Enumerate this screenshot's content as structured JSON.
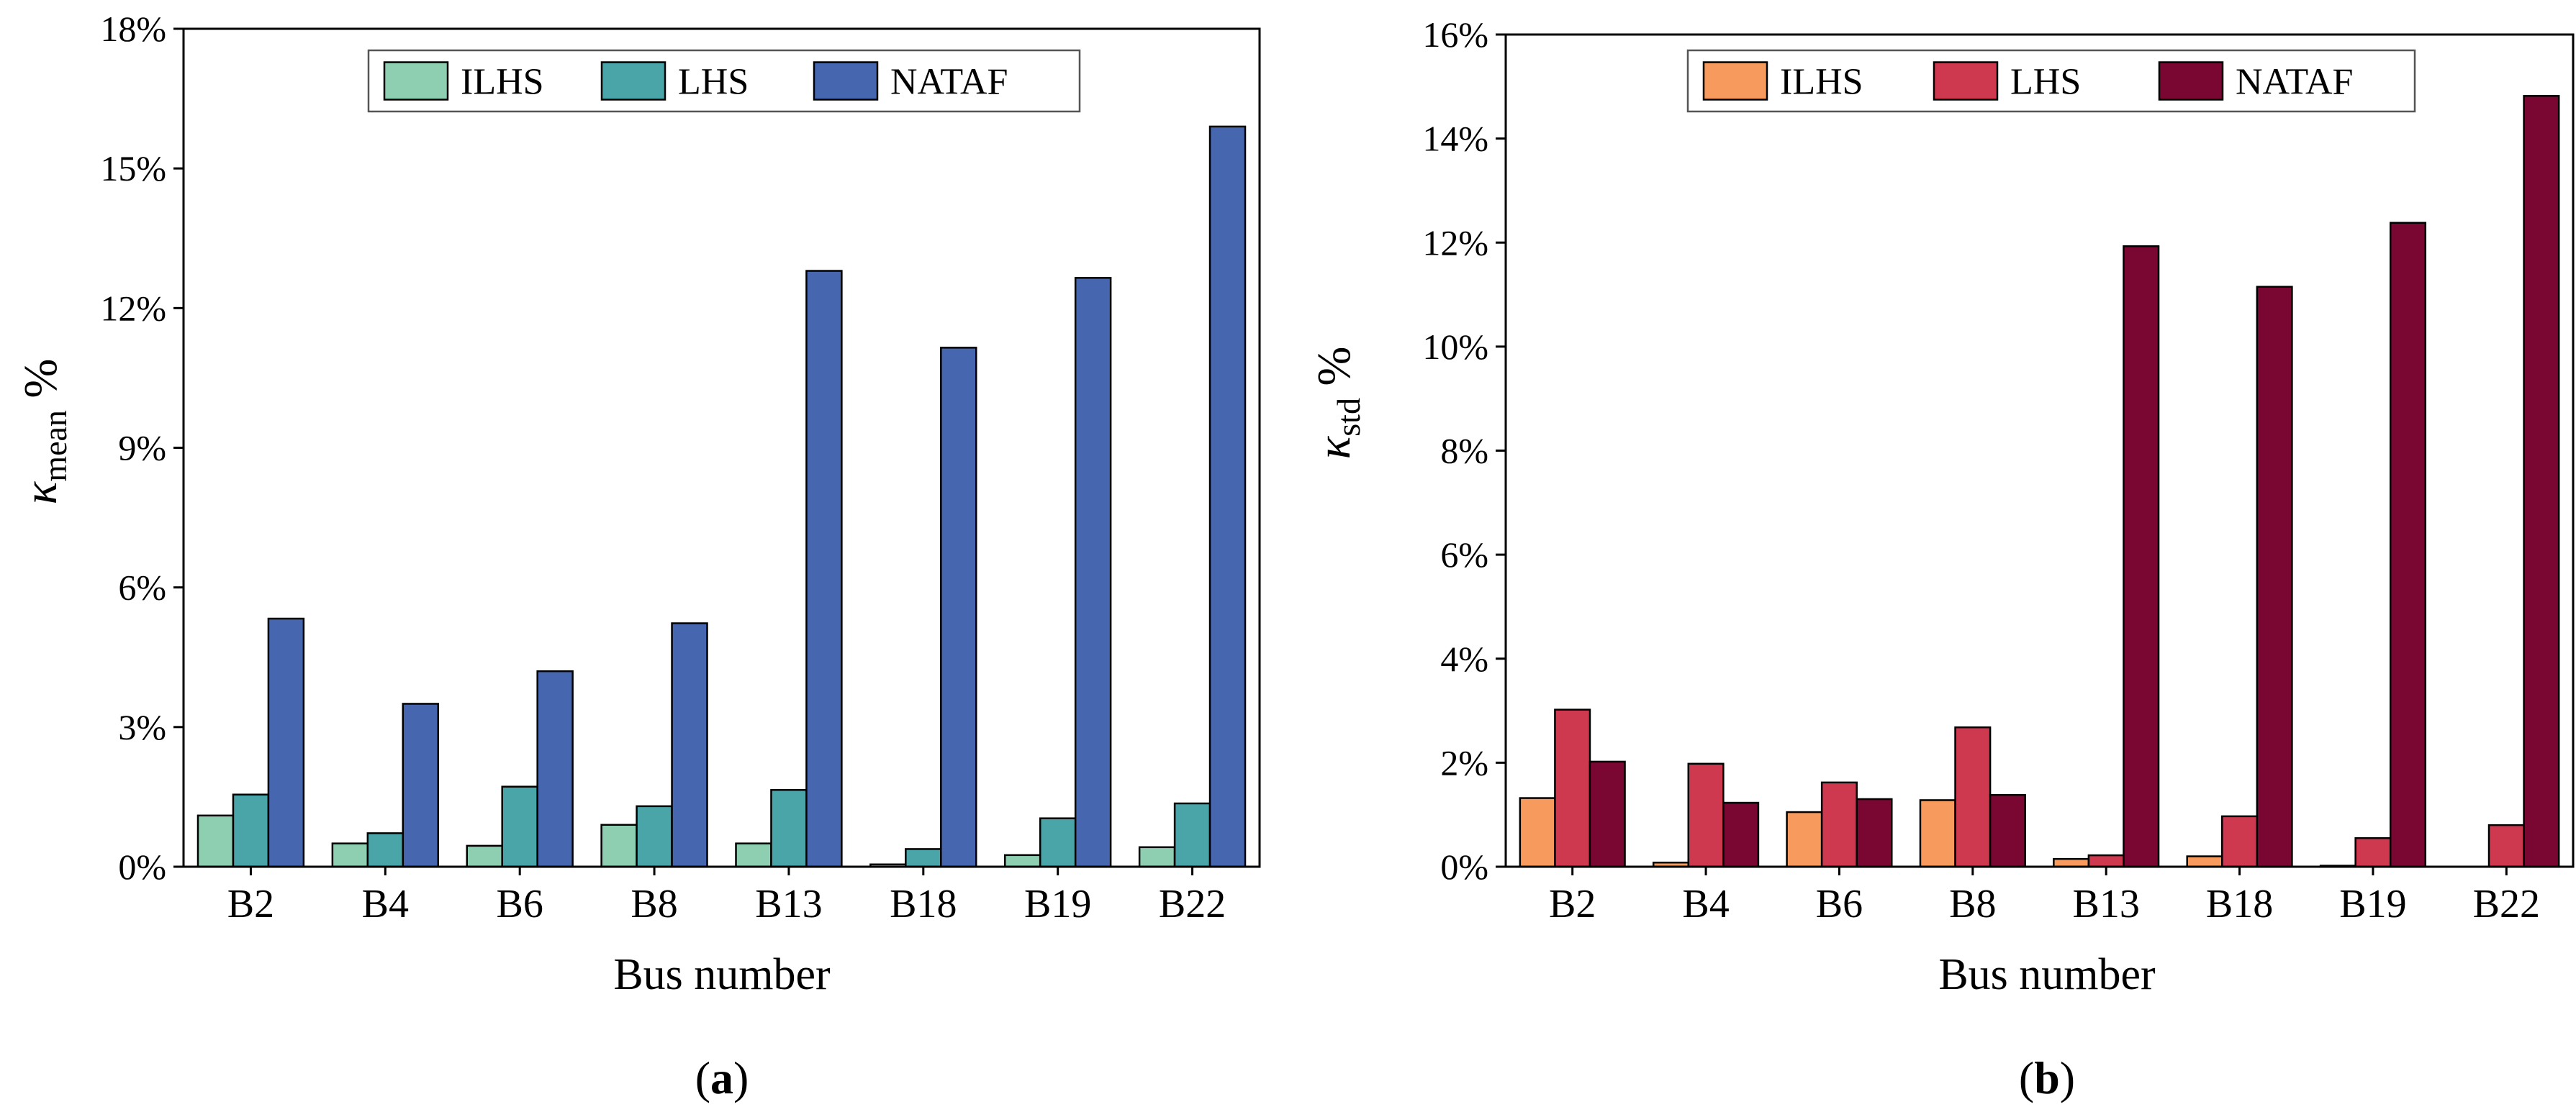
{
  "figure": {
    "panels": [
      {
        "id": "a",
        "caption_open": "(",
        "caption_letter": "a",
        "caption_close": ")"
      },
      {
        "id": "b",
        "caption_open": "(",
        "caption_letter": "b",
        "caption_close": ")"
      }
    ]
  },
  "chart_data": [
    {
      "type": "bar",
      "panel": "a",
      "title": "",
      "xlabel": "Bus number",
      "ylabel": {
        "symbol": "κ",
        "subscript": "mean",
        "suffix": " %"
      },
      "categories": [
        "B2",
        "B4",
        "B6",
        "B8",
        "B13",
        "B18",
        "B19",
        "B22"
      ],
      "ylim": [
        0,
        18
      ],
      "yticks": [
        "0%",
        "3%",
        "6%",
        "9%",
        "12%",
        "15%",
        "18%"
      ],
      "ytick_values": [
        0,
        3,
        6,
        9,
        12,
        15,
        18
      ],
      "legend_position": "top-center",
      "series": [
        {
          "name": "ILHS",
          "color": "#8dcfb0",
          "values": [
            1.1,
            0.5,
            0.45,
            0.9,
            0.5,
            0.05,
            0.25,
            0.42
          ]
        },
        {
          "name": "LHS",
          "color": "#4aa5a8",
          "values": [
            1.55,
            0.72,
            1.72,
            1.3,
            1.65,
            0.38,
            1.04,
            1.36
          ]
        },
        {
          "name": "NATAF",
          "color": "#4667b0",
          "values": [
            5.33,
            3.5,
            4.2,
            5.23,
            12.8,
            11.15,
            12.65,
            15.9
          ]
        }
      ]
    },
    {
      "type": "bar",
      "panel": "b",
      "title": "",
      "xlabel": "Bus number",
      "ylabel": {
        "symbol": "κ",
        "subscript": "std",
        "suffix": " %"
      },
      "categories": [
        "B2",
        "B4",
        "B6",
        "B8",
        "B13",
        "B18",
        "B19",
        "B22"
      ],
      "ylim": [
        0,
        16
      ],
      "yticks": [
        "0%",
        "2%",
        "4%",
        "6%",
        "8%",
        "10%",
        "12%",
        "14%",
        "16%"
      ],
      "ytick_values": [
        0,
        2,
        4,
        6,
        8,
        10,
        12,
        14,
        16
      ],
      "legend_position": "top-center",
      "series": [
        {
          "name": "ILHS",
          "color": "#f79a5d",
          "values": [
            1.32,
            0.08,
            1.05,
            1.28,
            0.15,
            0.2,
            0.02,
            0.0
          ]
        },
        {
          "name": "LHS",
          "color": "#cf394f",
          "values": [
            3.02,
            1.98,
            1.62,
            2.68,
            0.22,
            0.97,
            0.55,
            0.8
          ]
        },
        {
          "name": "NATAF",
          "color": "#7a0632",
          "values": [
            2.02,
            1.23,
            1.3,
            1.38,
            11.93,
            11.15,
            12.38,
            14.82
          ]
        }
      ]
    }
  ]
}
